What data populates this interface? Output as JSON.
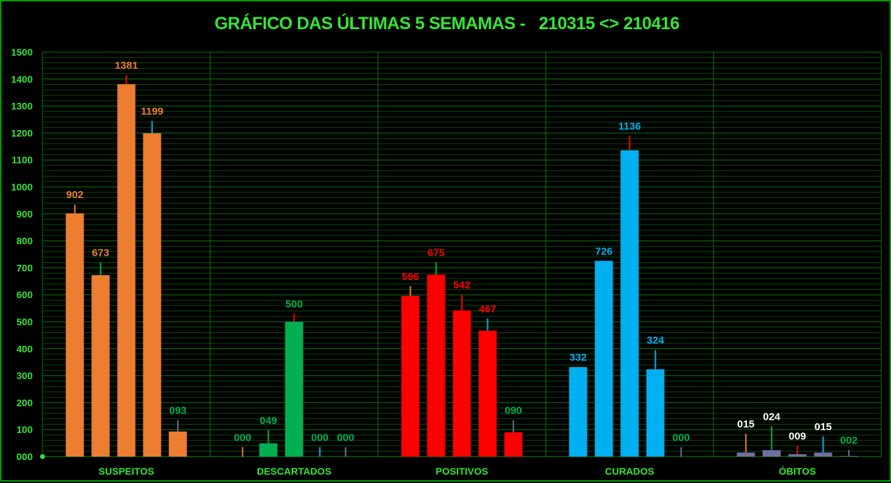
{
  "colors": {
    "background": "#000000",
    "grid": "#0a7a0a",
    "axis_text": "#33e633",
    "orange": "#ed7d31",
    "green": "#00b050",
    "red": "#ff0000",
    "blue": "#00b0f0",
    "slate": "#7070a0",
    "white": "#ffffff"
  },
  "chart_data": {
    "type": "bar",
    "title": "GRÁFICO DAS ÚLTIMAS 5 SEMAMAS -   210315 <> 210416",
    "xlabel": "",
    "ylabel": "",
    "ylim": [
      0,
      1500
    ],
    "yticks": [
      0,
      100,
      200,
      300,
      400,
      500,
      600,
      700,
      800,
      900,
      1000,
      1100,
      1200,
      1300,
      1400,
      1500
    ],
    "ytick_labels": [
      "000",
      "100",
      "200",
      "300",
      "400",
      "500",
      "600",
      "700",
      "800",
      "900",
      "1000",
      "1100",
      "1200",
      "1300",
      "1400",
      "1500"
    ],
    "grid": true,
    "legend": "none",
    "categories": [
      "SUSPEITOS",
      "DESCARTADOS",
      "POSITIVOS",
      "CURADOS",
      "ÓBITOS"
    ],
    "groups": [
      {
        "category": "SUSPEITOS",
        "bar_color": "orange",
        "bars": [
          {
            "value": 902,
            "label": "902",
            "label_color": "orange",
            "line_color": "orange",
            "line_top": 935
          },
          {
            "value": 673,
            "label": "673",
            "label_color": "orange",
            "line_color": "green",
            "line_top": 720
          },
          {
            "value": 1381,
            "label": "1381",
            "label_color": "orange",
            "line_color": "red",
            "line_top": 1415
          },
          {
            "value": 1199,
            "label": "1199",
            "label_color": "orange",
            "line_color": "blue",
            "line_top": 1245
          },
          {
            "value": 93,
            "label": "093",
            "label_color": "green",
            "line_color": "slate",
            "line_top": 135
          }
        ]
      },
      {
        "category": "DESCARTADOS",
        "bar_color": "green",
        "bars": [
          {
            "value": 0,
            "label": "000",
            "label_color": "green",
            "line_color": "orange",
            "line_top": 35
          },
          {
            "value": 49,
            "label": "049",
            "label_color": "green",
            "line_color": "green",
            "line_top": 98
          },
          {
            "value": 500,
            "label": "500",
            "label_color": "green",
            "line_color": "red",
            "line_top": 530
          },
          {
            "value": 0,
            "label": "000",
            "label_color": "green",
            "line_color": "blue",
            "line_top": 35
          },
          {
            "value": 0,
            "label": "000",
            "label_color": "green",
            "line_color": "slate",
            "line_top": 35
          }
        ]
      },
      {
        "category": "POSITIVOS",
        "bar_color": "red",
        "bars": [
          {
            "value": 596,
            "label": "596",
            "label_color": "red",
            "line_color": "orange",
            "line_top": 632
          },
          {
            "value": 675,
            "label": "675",
            "label_color": "red",
            "line_color": "green",
            "line_top": 720
          },
          {
            "value": 542,
            "label": "542",
            "label_color": "red",
            "line_color": "red",
            "line_top": 600
          },
          {
            "value": 467,
            "label": "467",
            "label_color": "red",
            "line_color": "blue",
            "line_top": 512
          },
          {
            "value": 90,
            "label": "090",
            "label_color": "green",
            "line_color": "slate",
            "line_top": 135
          }
        ]
      },
      {
        "category": "CURADOS",
        "bar_color": "blue",
        "bars": [
          {
            "value": 332,
            "label": "332",
            "label_color": "blue",
            "line_color": "orange",
            "line_top": 332
          },
          {
            "value": 726,
            "label": "726",
            "label_color": "blue",
            "line_color": "green",
            "line_top": 726
          },
          {
            "value": 1136,
            "label": "1136",
            "label_color": "blue",
            "line_color": "red",
            "line_top": 1190
          },
          {
            "value": 324,
            "label": "324",
            "label_color": "blue",
            "line_color": "blue",
            "line_top": 395
          },
          {
            "value": 0,
            "label": "000",
            "label_color": "green",
            "line_color": "slate",
            "line_top": 35
          }
        ]
      },
      {
        "category": "ÓBITOS",
        "bar_color": "slate",
        "bars": [
          {
            "value": 15,
            "label": "015",
            "label_color": "white",
            "line_color": "orange",
            "line_top": 85
          },
          {
            "value": 24,
            "label": "024",
            "label_color": "white",
            "line_color": "green",
            "line_top": 112
          },
          {
            "value": 9,
            "label": "009",
            "label_color": "white",
            "line_color": "red",
            "line_top": 40
          },
          {
            "value": 15,
            "label": "015",
            "label_color": "white",
            "line_color": "blue",
            "line_top": 75
          },
          {
            "value": 2,
            "label": "002",
            "label_color": "green",
            "line_color": "slate",
            "line_top": 25
          }
        ]
      }
    ]
  }
}
